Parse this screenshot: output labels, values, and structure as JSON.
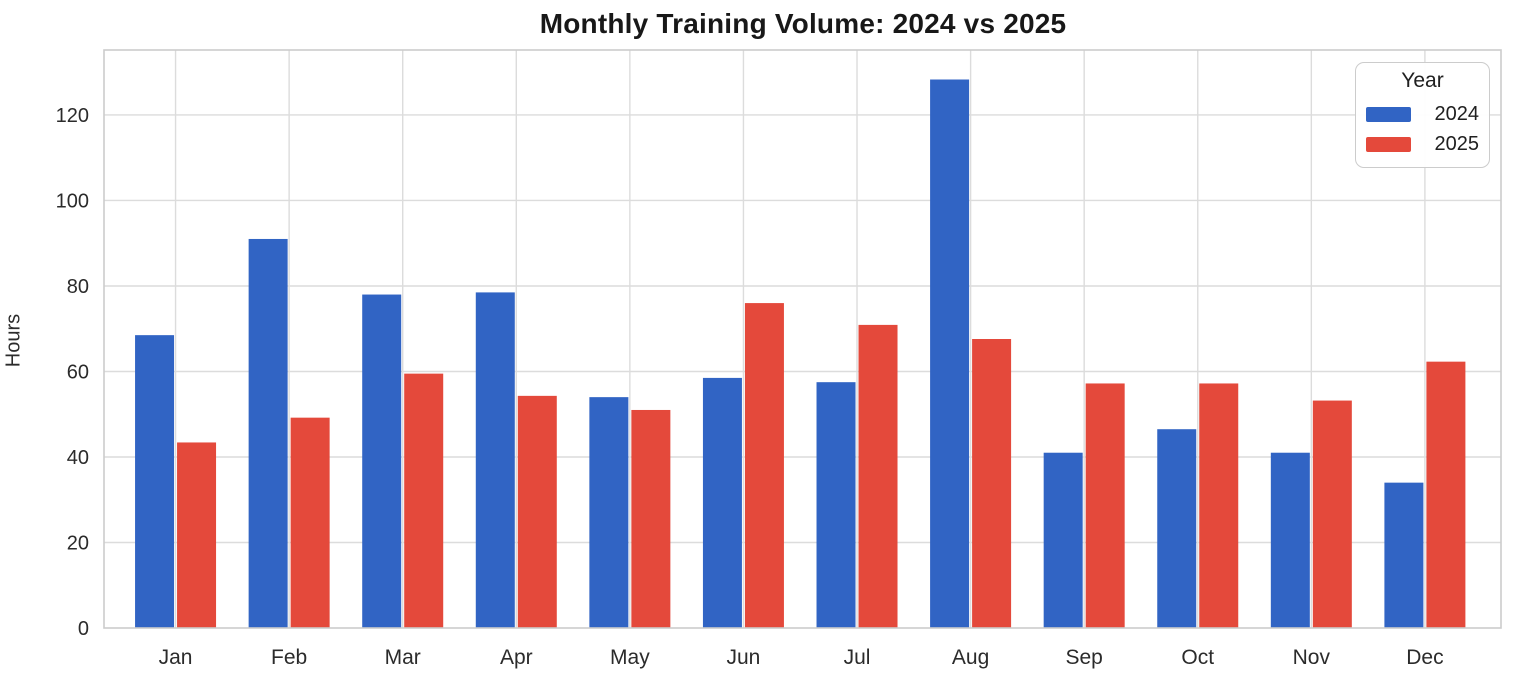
{
  "chart_data": {
    "type": "bar",
    "title": "Monthly Training Volume: 2024 vs 2025",
    "xlabel": "",
    "ylabel": "Hours",
    "categories": [
      "Jan",
      "Feb",
      "Mar",
      "Apr",
      "May",
      "Jun",
      "Jul",
      "Aug",
      "Sep",
      "Oct",
      "Nov",
      "Dec"
    ],
    "series": [
      {
        "name": "2024",
        "color": "#3164c4",
        "values": [
          68.5,
          91,
          78,
          78.5,
          54,
          58.5,
          57.5,
          128.3,
          41,
          46.5,
          41,
          34
        ]
      },
      {
        "name": "2025",
        "color": "#e4493b",
        "values": [
          43.4,
          49.2,
          59.5,
          54.3,
          51,
          76,
          70.9,
          67.6,
          57.2,
          57.2,
          53.2,
          62.3
        ]
      }
    ],
    "yticks": [
      0,
      20,
      40,
      60,
      80,
      100,
      120
    ],
    "ylim": [
      0,
      135.2
    ],
    "grid": true,
    "legend": {
      "title": "Year",
      "position": "upper right"
    },
    "colors": {
      "gridline": "#dcdcdc",
      "spine": "#cccccc",
      "tick_text": "#2b2b2b"
    }
  }
}
